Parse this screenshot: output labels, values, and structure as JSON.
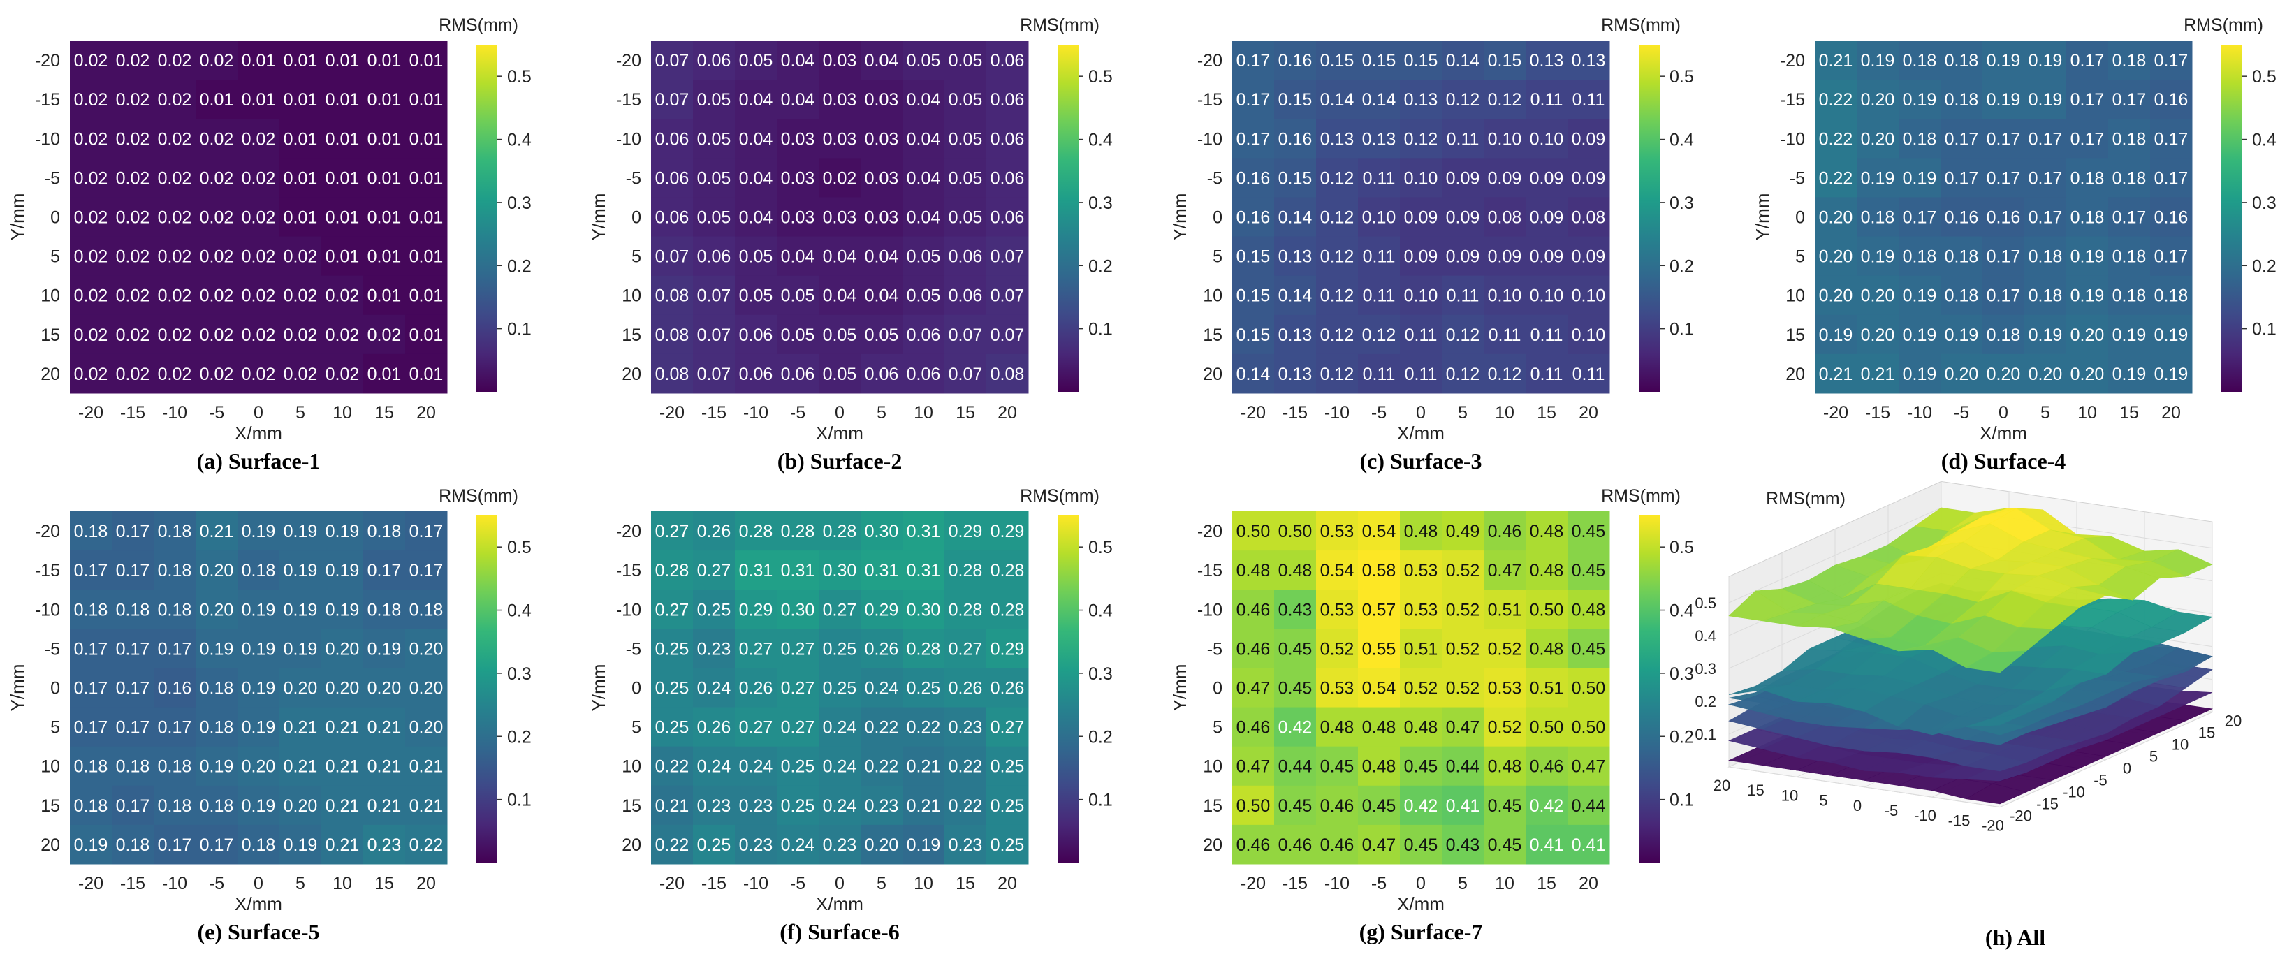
{
  "colormap": [
    "#440154",
    "#482878",
    "#3e4a89",
    "#31688e",
    "#26828e",
    "#1f9e89",
    "#35b779",
    "#6ece58",
    "#b5de2b",
    "#fde725"
  ],
  "chart_data": [
    {
      "type": "heatmap",
      "id": "s1",
      "caption": "(a) Surface-1",
      "xlabel": "X/mm",
      "ylabel": "Y/mm",
      "x": [
        "-20",
        "-15",
        "-10",
        "-5",
        "0",
        "5",
        "10",
        "15",
        "20"
      ],
      "y": [
        "-20",
        "-15",
        "-10",
        "-5",
        "0",
        "5",
        "10",
        "15",
        "20"
      ],
      "colorbar": {
        "title": "RMS(mm)",
        "range": [
          0.0,
          0.55
        ],
        "ticks": [
          "0.1",
          "0.2",
          "0.3",
          "0.4",
          "0.5"
        ]
      },
      "values": [
        [
          "0.02",
          "0.02",
          "0.02",
          "0.02",
          "0.01",
          "0.01",
          "0.01",
          "0.01",
          "0.01"
        ],
        [
          "0.02",
          "0.02",
          "0.02",
          "0.01",
          "0.01",
          "0.01",
          "0.01",
          "0.01",
          "0.01"
        ],
        [
          "0.02",
          "0.02",
          "0.02",
          "0.02",
          "0.02",
          "0.01",
          "0.01",
          "0.01",
          "0.01"
        ],
        [
          "0.02",
          "0.02",
          "0.02",
          "0.02",
          "0.02",
          "0.01",
          "0.01",
          "0.01",
          "0.01"
        ],
        [
          "0.02",
          "0.02",
          "0.02",
          "0.02",
          "0.02",
          "0.01",
          "0.01",
          "0.01",
          "0.01"
        ],
        [
          "0.02",
          "0.02",
          "0.02",
          "0.02",
          "0.02",
          "0.02",
          "0.01",
          "0.01",
          "0.01"
        ],
        [
          "0.02",
          "0.02",
          "0.02",
          "0.02",
          "0.02",
          "0.02",
          "0.02",
          "0.01",
          "0.01"
        ],
        [
          "0.02",
          "0.02",
          "0.02",
          "0.02",
          "0.02",
          "0.02",
          "0.02",
          "0.02",
          "0.01"
        ],
        [
          "0.02",
          "0.02",
          "0.02",
          "0.02",
          "0.02",
          "0.02",
          "0.02",
          "0.01",
          "0.01"
        ]
      ]
    },
    {
      "type": "heatmap",
      "id": "s2",
      "caption": "(b) Surface-2",
      "xlabel": "X/mm",
      "ylabel": "Y/mm",
      "x": [
        "-20",
        "-15",
        "-10",
        "-5",
        "0",
        "5",
        "10",
        "15",
        "20"
      ],
      "y": [
        "-20",
        "-15",
        "-10",
        "-5",
        "0",
        "5",
        "10",
        "15",
        "20"
      ],
      "colorbar": {
        "title": "RMS(mm)",
        "range": [
          0.0,
          0.55
        ],
        "ticks": [
          "0.1",
          "0.2",
          "0.3",
          "0.4",
          "0.5"
        ]
      },
      "values": [
        [
          "0.07",
          "0.06",
          "0.05",
          "0.04",
          "0.03",
          "0.04",
          "0.05",
          "0.05",
          "0.06"
        ],
        [
          "0.07",
          "0.05",
          "0.04",
          "0.04",
          "0.03",
          "0.03",
          "0.04",
          "0.05",
          "0.06"
        ],
        [
          "0.06",
          "0.05",
          "0.04",
          "0.03",
          "0.03",
          "0.03",
          "0.04",
          "0.05",
          "0.06"
        ],
        [
          "0.06",
          "0.05",
          "0.04",
          "0.03",
          "0.02",
          "0.03",
          "0.04",
          "0.05",
          "0.06"
        ],
        [
          "0.06",
          "0.05",
          "0.04",
          "0.03",
          "0.03",
          "0.03",
          "0.04",
          "0.05",
          "0.06"
        ],
        [
          "0.07",
          "0.06",
          "0.05",
          "0.04",
          "0.04",
          "0.04",
          "0.05",
          "0.06",
          "0.07"
        ],
        [
          "0.08",
          "0.07",
          "0.05",
          "0.05",
          "0.04",
          "0.04",
          "0.05",
          "0.06",
          "0.07"
        ],
        [
          "0.08",
          "0.07",
          "0.06",
          "0.05",
          "0.05",
          "0.05",
          "0.06",
          "0.07",
          "0.07"
        ],
        [
          "0.08",
          "0.07",
          "0.06",
          "0.06",
          "0.05",
          "0.06",
          "0.06",
          "0.07",
          "0.08"
        ]
      ]
    },
    {
      "type": "heatmap",
      "id": "s3",
      "caption": "(c) Surface-3",
      "xlabel": "X/mm",
      "ylabel": "Y/mm",
      "x": [
        "-20",
        "-15",
        "-10",
        "-5",
        "0",
        "5",
        "10",
        "15",
        "20"
      ],
      "y": [
        "-20",
        "-15",
        "-10",
        "-5",
        "0",
        "5",
        "10",
        "15",
        "20"
      ],
      "colorbar": {
        "title": "RMS(mm)",
        "range": [
          0.0,
          0.55
        ],
        "ticks": [
          "0.1",
          "0.2",
          "0.3",
          "0.4",
          "0.5"
        ]
      },
      "values": [
        [
          "0.17",
          "0.16",
          "0.15",
          "0.15",
          "0.15",
          "0.14",
          "0.15",
          "0.13",
          "0.13"
        ],
        [
          "0.17",
          "0.15",
          "0.14",
          "0.14",
          "0.13",
          "0.12",
          "0.12",
          "0.11",
          "0.11"
        ],
        [
          "0.17",
          "0.16",
          "0.13",
          "0.13",
          "0.12",
          "0.11",
          "0.10",
          "0.10",
          "0.09"
        ],
        [
          "0.16",
          "0.15",
          "0.12",
          "0.11",
          "0.10",
          "0.09",
          "0.09",
          "0.09",
          "0.09"
        ],
        [
          "0.16",
          "0.14",
          "0.12",
          "0.10",
          "0.09",
          "0.09",
          "0.08",
          "0.09",
          "0.08"
        ],
        [
          "0.15",
          "0.13",
          "0.12",
          "0.11",
          "0.09",
          "0.09",
          "0.09",
          "0.09",
          "0.09"
        ],
        [
          "0.15",
          "0.14",
          "0.12",
          "0.11",
          "0.10",
          "0.11",
          "0.10",
          "0.10",
          "0.10"
        ],
        [
          "0.15",
          "0.13",
          "0.12",
          "0.12",
          "0.11",
          "0.12",
          "0.11",
          "0.11",
          "0.10"
        ],
        [
          "0.14",
          "0.13",
          "0.12",
          "0.11",
          "0.11",
          "0.12",
          "0.12",
          "0.11",
          "0.11"
        ]
      ]
    },
    {
      "type": "heatmap",
      "id": "s4",
      "caption": "(d) Surface-4",
      "xlabel": "X/mm",
      "ylabel": "Y/mm",
      "x": [
        "-20",
        "-15",
        "-10",
        "-5",
        "0",
        "5",
        "10",
        "15",
        "20"
      ],
      "y": [
        "-20",
        "-15",
        "-10",
        "-5",
        "0",
        "5",
        "10",
        "15",
        "20"
      ],
      "colorbar": {
        "title": "RMS(mm)",
        "range": [
          0.0,
          0.55
        ],
        "ticks": [
          "0.1",
          "0.2",
          "0.3",
          "0.4",
          "0.5"
        ]
      },
      "values": [
        [
          "0.21",
          "0.19",
          "0.18",
          "0.18",
          "0.19",
          "0.19",
          "0.17",
          "0.18",
          "0.17"
        ],
        [
          "0.22",
          "0.20",
          "0.19",
          "0.18",
          "0.19",
          "0.19",
          "0.17",
          "0.17",
          "0.16"
        ],
        [
          "0.22",
          "0.20",
          "0.18",
          "0.17",
          "0.17",
          "0.17",
          "0.17",
          "0.18",
          "0.17"
        ],
        [
          "0.22",
          "0.19",
          "0.19",
          "0.17",
          "0.17",
          "0.17",
          "0.18",
          "0.18",
          "0.17"
        ],
        [
          "0.20",
          "0.18",
          "0.17",
          "0.16",
          "0.16",
          "0.17",
          "0.18",
          "0.17",
          "0.16"
        ],
        [
          "0.20",
          "0.19",
          "0.18",
          "0.18",
          "0.17",
          "0.18",
          "0.19",
          "0.18",
          "0.17"
        ],
        [
          "0.20",
          "0.20",
          "0.19",
          "0.18",
          "0.17",
          "0.18",
          "0.19",
          "0.18",
          "0.18"
        ],
        [
          "0.19",
          "0.20",
          "0.19",
          "0.19",
          "0.18",
          "0.19",
          "0.20",
          "0.19",
          "0.19"
        ],
        [
          "0.21",
          "0.21",
          "0.19",
          "0.20",
          "0.20",
          "0.20",
          "0.20",
          "0.19",
          "0.19"
        ]
      ]
    },
    {
      "type": "heatmap",
      "id": "s5",
      "caption": "(e) Surface-5",
      "xlabel": "X/mm",
      "ylabel": "Y/mm",
      "x": [
        "-20",
        "-15",
        "-10",
        "-5",
        "0",
        "5",
        "10",
        "15",
        "20"
      ],
      "y": [
        "-20",
        "-15",
        "-10",
        "-5",
        "0",
        "5",
        "10",
        "15",
        "20"
      ],
      "colorbar": {
        "title": "RMS(mm)",
        "range": [
          0.0,
          0.55
        ],
        "ticks": [
          "0.1",
          "0.2",
          "0.3",
          "0.4",
          "0.5"
        ]
      },
      "values": [
        [
          "0.18",
          "0.17",
          "0.18",
          "0.21",
          "0.19",
          "0.19",
          "0.19",
          "0.18",
          "0.17"
        ],
        [
          "0.17",
          "0.17",
          "0.18",
          "0.20",
          "0.18",
          "0.19",
          "0.19",
          "0.17",
          "0.17"
        ],
        [
          "0.18",
          "0.18",
          "0.18",
          "0.20",
          "0.19",
          "0.19",
          "0.19",
          "0.18",
          "0.18"
        ],
        [
          "0.17",
          "0.17",
          "0.17",
          "0.19",
          "0.19",
          "0.19",
          "0.20",
          "0.19",
          "0.20"
        ],
        [
          "0.17",
          "0.17",
          "0.16",
          "0.18",
          "0.19",
          "0.20",
          "0.20",
          "0.20",
          "0.20"
        ],
        [
          "0.17",
          "0.17",
          "0.17",
          "0.18",
          "0.19",
          "0.21",
          "0.21",
          "0.21",
          "0.20"
        ],
        [
          "0.18",
          "0.18",
          "0.18",
          "0.19",
          "0.20",
          "0.21",
          "0.21",
          "0.21",
          "0.21"
        ],
        [
          "0.18",
          "0.17",
          "0.18",
          "0.18",
          "0.19",
          "0.20",
          "0.21",
          "0.21",
          "0.21"
        ],
        [
          "0.19",
          "0.18",
          "0.17",
          "0.17",
          "0.18",
          "0.19",
          "0.21",
          "0.23",
          "0.22"
        ]
      ]
    },
    {
      "type": "heatmap",
      "id": "s6",
      "caption": "(f) Surface-6",
      "xlabel": "X/mm",
      "ylabel": "Y/mm",
      "x": [
        "-20",
        "-15",
        "-10",
        "-5",
        "0",
        "5",
        "10",
        "15",
        "20"
      ],
      "y": [
        "-20",
        "-15",
        "-10",
        "-5",
        "0",
        "5",
        "10",
        "15",
        "20"
      ],
      "colorbar": {
        "title": "RMS(mm)",
        "range": [
          0.0,
          0.55
        ],
        "ticks": [
          "0.1",
          "0.2",
          "0.3",
          "0.4",
          "0.5"
        ]
      },
      "values": [
        [
          "0.27",
          "0.26",
          "0.28",
          "0.28",
          "0.28",
          "0.30",
          "0.31",
          "0.29",
          "0.29"
        ],
        [
          "0.28",
          "0.27",
          "0.31",
          "0.31",
          "0.30",
          "0.31",
          "0.31",
          "0.28",
          "0.28"
        ],
        [
          "0.27",
          "0.25",
          "0.29",
          "0.30",
          "0.27",
          "0.29",
          "0.30",
          "0.28",
          "0.28"
        ],
        [
          "0.25",
          "0.23",
          "0.27",
          "0.27",
          "0.25",
          "0.26",
          "0.28",
          "0.27",
          "0.29"
        ],
        [
          "0.25",
          "0.24",
          "0.26",
          "0.27",
          "0.25",
          "0.24",
          "0.25",
          "0.26",
          "0.26"
        ],
        [
          "0.25",
          "0.26",
          "0.27",
          "0.27",
          "0.24",
          "0.22",
          "0.22",
          "0.23",
          "0.27"
        ],
        [
          "0.22",
          "0.24",
          "0.24",
          "0.25",
          "0.24",
          "0.22",
          "0.21",
          "0.22",
          "0.25"
        ],
        [
          "0.21",
          "0.23",
          "0.23",
          "0.25",
          "0.24",
          "0.23",
          "0.21",
          "0.22",
          "0.25"
        ],
        [
          "0.22",
          "0.25",
          "0.23",
          "0.24",
          "0.23",
          "0.20",
          "0.19",
          "0.23",
          "0.25"
        ]
      ]
    },
    {
      "type": "heatmap",
      "id": "s7",
      "caption": "(g) Surface-7",
      "xlabel": "X/mm",
      "ylabel": "Y/mm",
      "x": [
        "-20",
        "-15",
        "-10",
        "-5",
        "0",
        "5",
        "10",
        "15",
        "20"
      ],
      "y": [
        "-20",
        "-15",
        "-10",
        "-5",
        "0",
        "5",
        "10",
        "15",
        "20"
      ],
      "colorbar": {
        "title": "RMS(mm)",
        "range": [
          0.0,
          0.55
        ],
        "ticks": [
          "0.1",
          "0.2",
          "0.3",
          "0.4",
          "0.5"
        ]
      },
      "values": [
        [
          "0.50",
          "0.50",
          "0.53",
          "0.54",
          "0.48",
          "0.49",
          "0.46",
          "0.48",
          "0.45"
        ],
        [
          "0.48",
          "0.48",
          "0.54",
          "0.58",
          "0.53",
          "0.52",
          "0.47",
          "0.48",
          "0.45"
        ],
        [
          "0.46",
          "0.43",
          "0.53",
          "0.57",
          "0.53",
          "0.52",
          "0.51",
          "0.50",
          "0.48"
        ],
        [
          "0.46",
          "0.45",
          "0.52",
          "0.55",
          "0.51",
          "0.52",
          "0.52",
          "0.48",
          "0.45"
        ],
        [
          "0.47",
          "0.45",
          "0.53",
          "0.54",
          "0.52",
          "0.52",
          "0.53",
          "0.51",
          "0.50"
        ],
        [
          "0.46",
          "0.42",
          "0.48",
          "0.48",
          "0.48",
          "0.47",
          "0.52",
          "0.50",
          "0.50"
        ],
        [
          "0.47",
          "0.44",
          "0.45",
          "0.48",
          "0.45",
          "0.44",
          "0.48",
          "0.46",
          "0.47"
        ],
        [
          "0.50",
          "0.45",
          "0.46",
          "0.45",
          "0.42",
          "0.41",
          "0.45",
          "0.42",
          "0.44"
        ],
        [
          "0.46",
          "0.46",
          "0.46",
          "0.47",
          "0.45",
          "0.43",
          "0.45",
          "0.41",
          "0.41"
        ]
      ]
    },
    {
      "type": "surface3d",
      "id": "all",
      "caption": "(h) All",
      "zlabel": "RMS(mm)",
      "zticks": [
        "0.1",
        "0.2",
        "0.3",
        "0.4",
        "0.5"
      ],
      "xticks": [
        "20",
        "15",
        "10",
        "5",
        "0",
        "-5",
        "-10",
        "-15",
        "-20"
      ],
      "yticks": [
        "-20",
        "-15",
        "-10",
        "-5",
        "0",
        "5",
        "10",
        "15",
        "20"
      ],
      "series_refs": [
        "s1",
        "s2",
        "s3",
        "s4",
        "s5",
        "s6",
        "s7"
      ]
    }
  ]
}
